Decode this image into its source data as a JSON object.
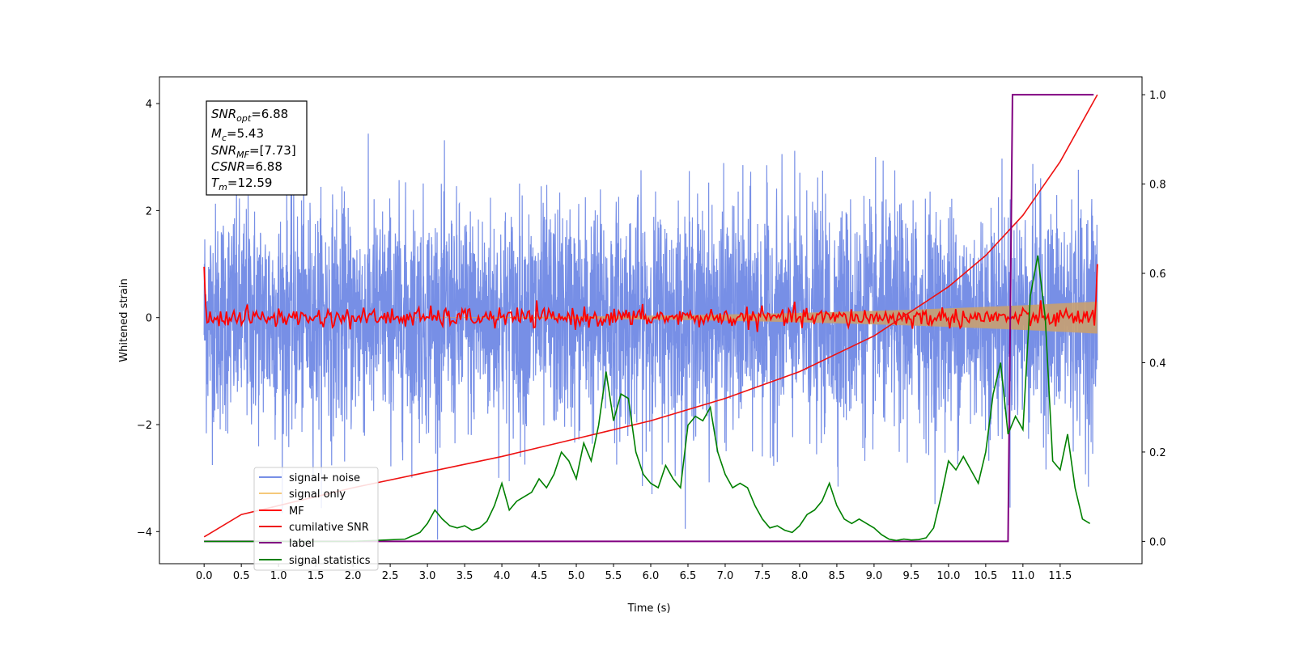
{
  "chart_data": {
    "type": "line",
    "xlabel": "Time (s)",
    "ylabel_left": "Whitened strain",
    "xlim": [
      -0.6,
      12.6
    ],
    "ylim_left": [
      -4.6,
      4.5
    ],
    "ylim_right": [
      -0.05,
      1.04
    ],
    "x_ticks": [
      "0.0",
      "0.5",
      "1.0",
      "1.5",
      "2.0",
      "2.5",
      "3.0",
      "3.5",
      "4.0",
      "4.5",
      "5.0",
      "5.5",
      "6.0",
      "6.5",
      "7.0",
      "7.5",
      "8.0",
      "8.5",
      "9.0",
      "9.5",
      "10.0",
      "10.5",
      "11.0",
      "11.5"
    ],
    "y_ticks_left": [
      "4",
      "2",
      "0",
      "−2",
      "−4"
    ],
    "y_ticks_right": [
      "1.0",
      "0.8",
      "0.6",
      "0.4",
      "0.2",
      "0.0"
    ],
    "grid": false,
    "legend_position": "lower-left",
    "colors": {
      "signal_noise": "#778fe6",
      "signal_only": "#f5c97a",
      "signal_band": "#c8a070",
      "mf": "#ff0000",
      "cumulative_snr": "#ee1111",
      "label": "#800080",
      "statistics": "#008000"
    },
    "stats_box": {
      "snr_opt": {
        "main": "SNR",
        "sub": "opt",
        "value": "=6.88"
      },
      "mc": {
        "main": "M",
        "sub": "c",
        "value": "=5.43"
      },
      "snr_mf": {
        "main": "SNR",
        "sub": "MF",
        "value": "=[7.73]"
      },
      "csnr": {
        "main": "CSNR",
        "value": "=6.88"
      },
      "tm": {
        "main": "T",
        "sub": "m",
        "value": "=12.59"
      }
    },
    "series": [
      {
        "name": "signal+ noise",
        "axis": "left",
        "description_values": "white noise, std ~1.0, peaks ~±4",
        "t_range": [
          0,
          12
        ]
      },
      {
        "name": "signal only",
        "axis": "left",
        "t_range": [
          0,
          12
        ],
        "amplitude_start": 0.0,
        "amplitude_end": 0.3
      },
      {
        "name": "MF",
        "axis": "left",
        "t_range": [
          0,
          12
        ],
        "start": 0.95,
        "level": 0.0,
        "end": 1.0
      },
      {
        "name": "cumilative SNR",
        "axis": "right",
        "x": [
          0,
          0.5,
          1,
          1.5,
          2,
          3,
          4,
          5,
          6,
          7,
          8,
          9,
          10,
          10.5,
          11,
          11.5,
          12
        ],
        "y": [
          0.01,
          0.06,
          0.08,
          0.1,
          0.12,
          0.155,
          0.19,
          0.23,
          0.27,
          0.32,
          0.38,
          0.46,
          0.57,
          0.64,
          0.73,
          0.85,
          1.0
        ]
      },
      {
        "name": "label",
        "axis": "right",
        "x": [
          0,
          10.8,
          10.86,
          11.95
        ],
        "y": [
          0,
          0,
          1,
          1
        ]
      },
      {
        "name": "signal statistics",
        "axis": "right",
        "x": [
          0,
          1,
          2,
          2.7,
          2.9,
          3.0,
          3.1,
          3.2,
          3.3,
          3.4,
          3.5,
          3.6,
          3.7,
          3.8,
          3.9,
          4.0,
          4.1,
          4.2,
          4.3,
          4.4,
          4.5,
          4.6,
          4.7,
          4.8,
          4.9,
          5.0,
          5.1,
          5.2,
          5.3,
          5.4,
          5.5,
          5.6,
          5.7,
          5.8,
          5.9,
          6.0,
          6.1,
          6.2,
          6.3,
          6.4,
          6.5,
          6.6,
          6.7,
          6.8,
          6.9,
          7.0,
          7.1,
          7.2,
          7.3,
          7.4,
          7.5,
          7.6,
          7.7,
          7.8,
          7.9,
          8.0,
          8.1,
          8.2,
          8.3,
          8.4,
          8.5,
          8.6,
          8.7,
          8.8,
          8.9,
          9.0,
          9.1,
          9.2,
          9.3,
          9.4,
          9.5,
          9.6,
          9.7,
          9.8,
          9.9,
          10.0,
          10.1,
          10.2,
          10.3,
          10.4,
          10.5,
          10.6,
          10.7,
          10.8,
          10.9,
          11.0,
          11.1,
          11.2,
          11.3,
          11.4,
          11.5,
          11.6,
          11.7,
          11.8,
          11.9
        ],
        "y": [
          0.0,
          0.0,
          0.0,
          0.005,
          0.02,
          0.04,
          0.07,
          0.05,
          0.035,
          0.03,
          0.035,
          0.025,
          0.03,
          0.045,
          0.08,
          0.13,
          0.07,
          0.09,
          0.1,
          0.11,
          0.14,
          0.12,
          0.15,
          0.2,
          0.18,
          0.14,
          0.22,
          0.18,
          0.26,
          0.38,
          0.27,
          0.33,
          0.32,
          0.2,
          0.15,
          0.13,
          0.12,
          0.17,
          0.14,
          0.12,
          0.26,
          0.28,
          0.27,
          0.3,
          0.2,
          0.15,
          0.12,
          0.13,
          0.12,
          0.08,
          0.05,
          0.03,
          0.035,
          0.025,
          0.02,
          0.035,
          0.06,
          0.07,
          0.09,
          0.13,
          0.08,
          0.05,
          0.04,
          0.05,
          0.04,
          0.03,
          0.015,
          0.005,
          0.002,
          0.005,
          0.003,
          0.004,
          0.008,
          0.03,
          0.1,
          0.18,
          0.16,
          0.19,
          0.16,
          0.13,
          0.2,
          0.33,
          0.4,
          0.24,
          0.28,
          0.25,
          0.55,
          0.64,
          0.5,
          0.18,
          0.16,
          0.24,
          0.12,
          0.05,
          0.04
        ]
      }
    ],
    "noise_profile": {
      "x": [
        0,
        2,
        4,
        6,
        8,
        10,
        12
      ],
      "std": [
        1.05,
        1.05,
        1.05,
        1.05,
        1.05,
        1.05,
        1.05
      ]
    }
  },
  "legend": [
    {
      "label": "signal+ noise",
      "color": "#778fe6"
    },
    {
      "label": "signal only",
      "color": "#f5c97a"
    },
    {
      "label": "MF",
      "color": "#ff0000"
    },
    {
      "label": "cumilative SNR",
      "color": "#ee1111"
    },
    {
      "label": "label",
      "color": "#800080"
    },
    {
      "label": "signal statistics",
      "color": "#008000"
    }
  ]
}
